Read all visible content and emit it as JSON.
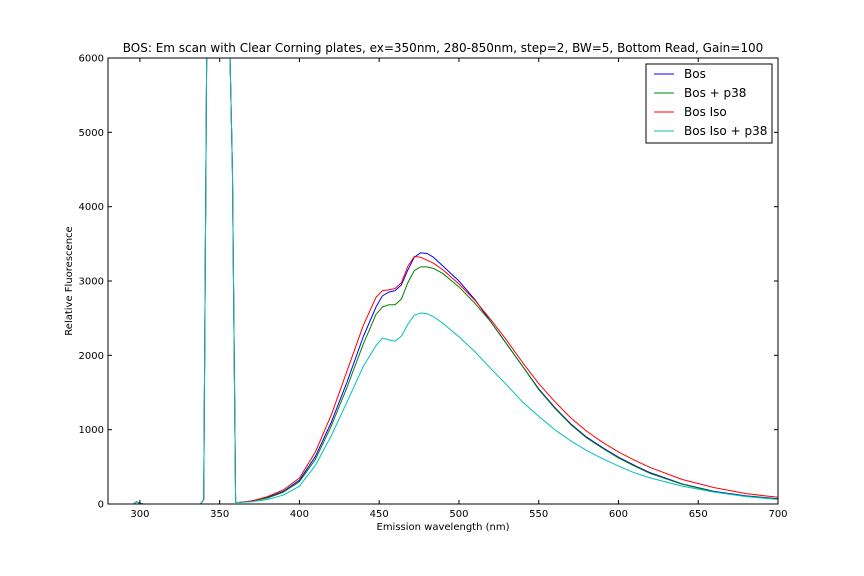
{
  "chart_data": {
    "type": "line",
    "title": "BOS: Em scan with Clear Corning plates, ex=350nm, 280-850nm, step=2, BW=5, Bottom Read, Gain=100",
    "xlabel": "Emission wavelength (nm)",
    "ylabel": "Relative Fluorescence",
    "xlim": [
      280,
      700
    ],
    "ylim": [
      0,
      6000
    ],
    "xticks": [
      300,
      350,
      400,
      450,
      500,
      550,
      600,
      650,
      700
    ],
    "yticks": [
      0,
      1000,
      2000,
      3000,
      4000,
      5000,
      6000
    ],
    "grid": false,
    "legend_position": "top-right",
    "series": [
      {
        "name": "Bos",
        "color": "#0000ff",
        "x": [
          280,
          296,
          298,
          300,
          302,
          320,
          338,
          340,
          342,
          344,
          354,
          356,
          358,
          360,
          362,
          370,
          380,
          390,
          400,
          410,
          420,
          430,
          440,
          448,
          452,
          456,
          460,
          464,
          468,
          472,
          476,
          480,
          484,
          490,
          500,
          510,
          520,
          530,
          540,
          550,
          560,
          570,
          580,
          590,
          600,
          610,
          620,
          640,
          660,
          680,
          700
        ],
        "y": [
          0,
          0,
          30,
          10,
          0,
          0,
          0,
          60,
          6500,
          6500,
          6500,
          6500,
          4500,
          20,
          20,
          40,
          90,
          170,
          320,
          640,
          1100,
          1650,
          2250,
          2650,
          2800,
          2850,
          2870,
          2950,
          3150,
          3320,
          3380,
          3370,
          3320,
          3200,
          3000,
          2750,
          2450,
          2150,
          1850,
          1550,
          1300,
          1080,
          900,
          760,
          630,
          520,
          420,
          270,
          170,
          110,
          70
        ]
      },
      {
        "name": "Bos + p38",
        "color": "#008000",
        "x": [
          280,
          296,
          298,
          300,
          302,
          320,
          338,
          340,
          342,
          344,
          354,
          356,
          358,
          360,
          362,
          370,
          380,
          390,
          400,
          410,
          420,
          430,
          440,
          448,
          452,
          456,
          460,
          464,
          468,
          472,
          476,
          480,
          484,
          490,
          500,
          510,
          520,
          530,
          540,
          550,
          560,
          570,
          580,
          590,
          600,
          610,
          620,
          640,
          660,
          680,
          700
        ],
        "y": [
          0,
          0,
          30,
          10,
          0,
          0,
          0,
          60,
          6500,
          6500,
          6500,
          6500,
          4500,
          20,
          20,
          40,
          80,
          160,
          300,
          600,
          1050,
          1580,
          2150,
          2550,
          2650,
          2680,
          2680,
          2760,
          2980,
          3140,
          3190,
          3190,
          3170,
          3100,
          2920,
          2700,
          2450,
          2150,
          1850,
          1540,
          1290,
          1070,
          890,
          750,
          620,
          510,
          410,
          265,
          165,
          105,
          65
        ]
      },
      {
        "name": "Bos Iso",
        "color": "#ff0000",
        "x": [
          280,
          296,
          298,
          300,
          302,
          320,
          338,
          340,
          342,
          344,
          354,
          356,
          358,
          360,
          362,
          370,
          380,
          390,
          400,
          410,
          420,
          430,
          440,
          448,
          452,
          456,
          460,
          464,
          468,
          472,
          476,
          480,
          484,
          490,
          500,
          510,
          520,
          530,
          540,
          550,
          560,
          570,
          580,
          590,
          600,
          610,
          620,
          640,
          660,
          680,
          700
        ],
        "y": [
          0,
          0,
          30,
          10,
          0,
          0,
          0,
          60,
          6500,
          6500,
          6500,
          6500,
          4500,
          20,
          20,
          40,
          100,
          190,
          350,
          700,
          1200,
          1800,
          2400,
          2780,
          2870,
          2880,
          2900,
          2980,
          3200,
          3330,
          3320,
          3280,
          3240,
          3150,
          2960,
          2740,
          2480,
          2200,
          1900,
          1620,
          1380,
          1160,
          980,
          830,
          700,
          590,
          490,
          330,
          220,
          140,
          90
        ]
      },
      {
        "name": "Bos Iso + p38",
        "color": "#00bfbf",
        "x": [
          280,
          296,
          298,
          300,
          302,
          320,
          338,
          340,
          342,
          344,
          354,
          356,
          358,
          360,
          362,
          370,
          380,
          390,
          400,
          410,
          420,
          430,
          440,
          448,
          452,
          456,
          460,
          464,
          468,
          472,
          476,
          480,
          484,
          490,
          500,
          510,
          520,
          530,
          540,
          550,
          560,
          570,
          580,
          590,
          600,
          610,
          620,
          640,
          660,
          680,
          700
        ],
        "y": [
          0,
          0,
          30,
          10,
          0,
          0,
          0,
          60,
          6500,
          6500,
          6500,
          6500,
          4500,
          20,
          20,
          30,
          60,
          120,
          240,
          520,
          920,
          1380,
          1850,
          2130,
          2230,
          2210,
          2190,
          2260,
          2420,
          2540,
          2570,
          2560,
          2520,
          2430,
          2250,
          2050,
          1820,
          1600,
          1370,
          1180,
          1000,
          850,
          720,
          610,
          510,
          420,
          350,
          240,
          160,
          100,
          60
        ]
      }
    ]
  }
}
